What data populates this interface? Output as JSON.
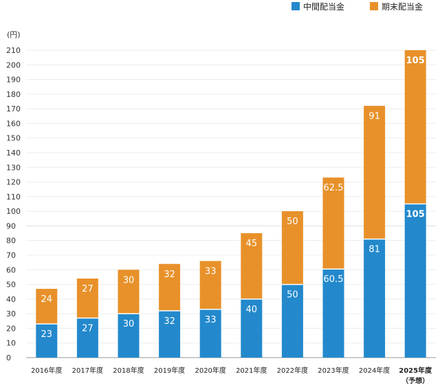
{
  "chart_data": {
    "type": "bar",
    "stacked": true,
    "title": "",
    "xlabel": "",
    "ylabel": "(円)",
    "ylim": [
      0,
      210
    ],
    "ytick_step": 10,
    "grid": true,
    "legend_position": "top-right",
    "categories": [
      "2016年度",
      "2017年度",
      "2018年度",
      "2019年度",
      "2020年度",
      "2021年度",
      "2022年度",
      "2023年度",
      "2024年度",
      "2025年度"
    ],
    "category_notes": [
      "",
      "",
      "",
      "",
      "",
      "",
      "",
      "",
      "",
      "（予想）"
    ],
    "highlight_category_index": 9,
    "series": [
      {
        "name": "中間配当金",
        "color": "#2389CC",
        "values": [
          23,
          27,
          30,
          32,
          33,
          40,
          50,
          60.5,
          81,
          105
        ]
      },
      {
        "name": "期末配当金",
        "color": "#E8912A",
        "values": [
          24,
          27,
          30,
          32,
          33,
          45,
          50,
          62.5,
          91,
          105
        ]
      }
    ]
  }
}
